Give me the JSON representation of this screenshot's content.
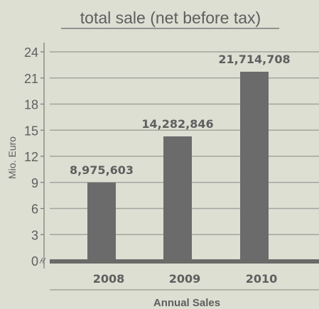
{
  "chart_data": {
    "type": "bar",
    "title": "total sale (net before tax)",
    "xlabel": "Annual Sales",
    "ylabel": "Mio. Euro",
    "categories": [
      "2008",
      "2009",
      "2010"
    ],
    "values": [
      8.975603,
      14.282846,
      21.714708
    ],
    "data_labels": [
      "8,975,603",
      "14,282,846",
      "21,714,708"
    ],
    "yticks": [
      "0",
      "3",
      "6",
      "9",
      "12",
      "15",
      "18",
      "21",
      "24"
    ],
    "ylim": [
      0,
      24
    ],
    "grid": true,
    "colors": {
      "background": "#dcdfd2",
      "bar": "#6b6b6b",
      "text": "#5f5f5f",
      "grid": "#a3a69d",
      "axis": "#7a7a78"
    }
  }
}
